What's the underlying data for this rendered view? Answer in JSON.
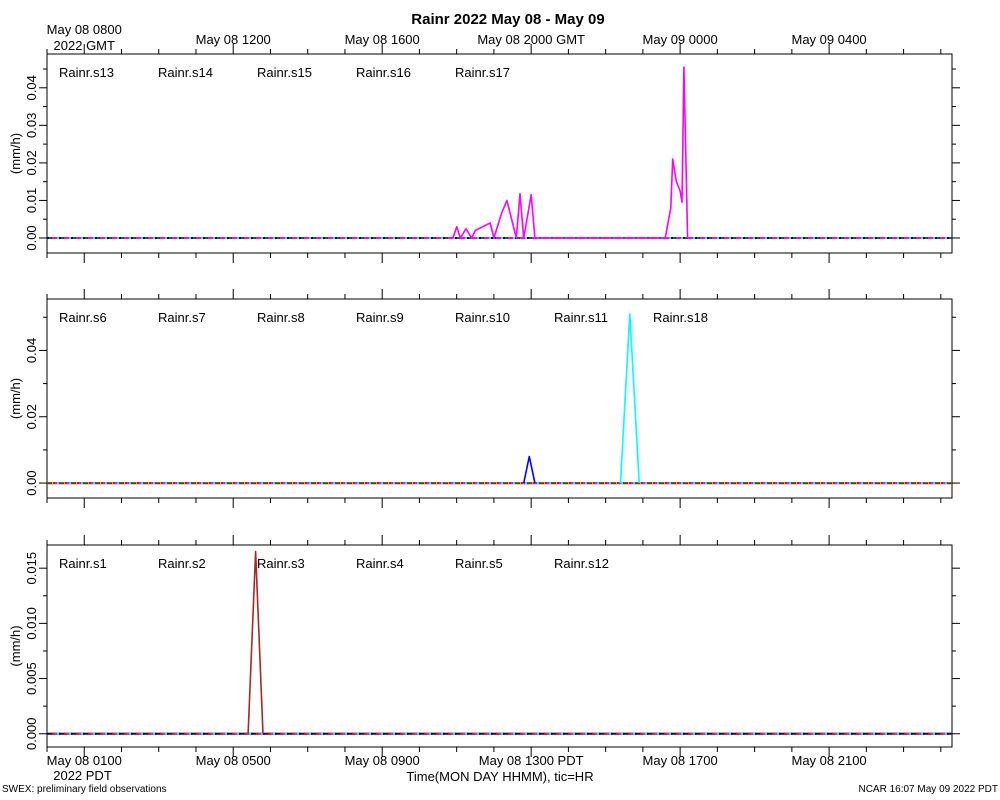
{
  "title": "Rainr 2022 May 08 - May 09",
  "footer_left": "SWEX: preliminary field observations",
  "footer_right": "NCAR 16:07 May 09 2022 PDT",
  "time_axis": {
    "top_ticks": [
      {
        "hour": 0,
        "label": "May 08 0800",
        "sub": "2022 GMT"
      },
      {
        "hour": 4,
        "label": "May 08 1200"
      },
      {
        "hour": 8,
        "label": "May 08 1600"
      },
      {
        "hour": 12,
        "label": "May 08 2000 GMT"
      },
      {
        "hour": 16,
        "label": "May 09 0000"
      },
      {
        "hour": 20,
        "label": "May 09 0400"
      }
    ],
    "bottom_ticks": [
      {
        "hour": 0,
        "label": "May 08 0100",
        "sub": "2022 PDT"
      },
      {
        "hour": 4,
        "label": "May 08 0500"
      },
      {
        "hour": 8,
        "label": "May 08 0900"
      },
      {
        "hour": 12,
        "label": "May 08 1300 PDT"
      },
      {
        "hour": 16,
        "label": "May 08 1700"
      },
      {
        "hour": 20,
        "label": "May 08 2100"
      }
    ],
    "xlabel": "Time(MON DAY HHMM), tic=HR",
    "xlim": [
      -1,
      23.3
    ]
  },
  "chart_data": [
    {
      "type": "line",
      "ylabel": "(mm/h)",
      "ylim": [
        -0.004,
        0.049
      ],
      "yticks": [
        {
          "v": 0.0,
          "label": "0.00"
        },
        {
          "v": 0.01,
          "label": "0.01"
        },
        {
          "v": 0.02,
          "label": "0.02"
        },
        {
          "v": 0.03,
          "label": "0.03"
        },
        {
          "v": 0.04,
          "label": "0.04"
        }
      ],
      "yminor": [
        0.005,
        0.015,
        0.025,
        0.035,
        0.045
      ],
      "series": [
        {
          "name": "Rainr.s13",
          "color": "#ff0000",
          "points": []
        },
        {
          "name": "Rainr.s14",
          "color": "#00ff00",
          "points": []
        },
        {
          "name": "Rainr.s15",
          "color": "#0000ff",
          "points": []
        },
        {
          "name": "Rainr.s16",
          "color": "#00ffff",
          "points": []
        },
        {
          "name": "Rainr.s17",
          "color": "#ff00ff",
          "points": [
            [
              9.9,
              0.0
            ],
            [
              10.0,
              0.003
            ],
            [
              10.1,
              0.0
            ],
            [
              10.25,
              0.0025
            ],
            [
              10.4,
              0.0
            ],
            [
              10.5,
              0.002
            ],
            [
              10.7,
              0.003
            ],
            [
              10.9,
              0.004
            ],
            [
              11.0,
              0.0
            ],
            [
              11.2,
              0.0065
            ],
            [
              11.35,
              0.01
            ],
            [
              11.6,
              0.0
            ],
            [
              11.7,
              0.0118
            ],
            [
              11.8,
              0.0
            ],
            [
              12.0,
              0.0115
            ],
            [
              12.1,
              0.0
            ],
            [
              15.6,
              0.0
            ],
            [
              15.75,
              0.008
            ],
            [
              15.8,
              0.021
            ],
            [
              15.9,
              0.015
            ],
            [
              16.0,
              0.0125
            ],
            [
              16.05,
              0.0095
            ],
            [
              16.1,
              0.0455
            ],
            [
              16.2,
              0.0
            ]
          ]
        }
      ]
    },
    {
      "type": "line",
      "ylabel": "(mm/h)",
      "ylim": [
        -0.0045,
        0.0555
      ],
      "yticks": [
        {
          "v": 0.0,
          "label": "0.00"
        },
        {
          "v": 0.02,
          "label": "0.02"
        },
        {
          "v": 0.04,
          "label": "0.04"
        }
      ],
      "yminor": [
        0.01,
        0.03,
        0.05
      ],
      "series": [
        {
          "name": "Rainr.s6",
          "color": "#ff0000",
          "points": []
        },
        {
          "name": "Rainr.s7",
          "color": "#00ff00",
          "points": []
        },
        {
          "name": "Rainr.s8",
          "color": "#0000ff",
          "points": [
            [
              11.8,
              0.0
            ],
            [
              11.95,
              0.008
            ],
            [
              12.1,
              0.0
            ]
          ]
        },
        {
          "name": "Rainr.s9",
          "color": "#00ffff",
          "points": [
            [
              14.4,
              0.0
            ],
            [
              14.65,
              0.051
            ],
            [
              14.9,
              0.0
            ]
          ]
        },
        {
          "name": "Rainr.s10",
          "color": "#ff00ff",
          "points": []
        },
        {
          "name": "Rainr.s11",
          "color": "#a52a2a",
          "points": []
        },
        {
          "name": "Rainr.s18",
          "color": "#ffa500",
          "points": []
        }
      ]
    },
    {
      "type": "line",
      "ylabel": "(mm/h)",
      "ylim": [
        -0.0012,
        0.0171
      ],
      "yticks": [
        {
          "v": 0.0,
          "label": "0.000"
        },
        {
          "v": 0.005,
          "label": "0.005"
        },
        {
          "v": 0.01,
          "label": "0.010"
        },
        {
          "v": 0.015,
          "label": "0.015"
        }
      ],
      "yminor": [
        0.0025,
        0.0075,
        0.0125
      ],
      "series": [
        {
          "name": "Rainr.s1",
          "color": "#ff0000",
          "points": []
        },
        {
          "name": "Rainr.s2",
          "color": "#00ff00",
          "points": []
        },
        {
          "name": "Rainr.s3",
          "color": "#0000ff",
          "points": []
        },
        {
          "name": "Rainr.s4",
          "color": "#00ffff",
          "points": []
        },
        {
          "name": "Rainr.s5",
          "color": "#ff00ff",
          "points": []
        },
        {
          "name": "Rainr.s12",
          "color": "#a52a2a",
          "points": [
            [
              4.4,
              0.0
            ],
            [
              4.6,
              0.0165
            ],
            [
              4.8,
              0.0
            ]
          ]
        }
      ]
    }
  ]
}
